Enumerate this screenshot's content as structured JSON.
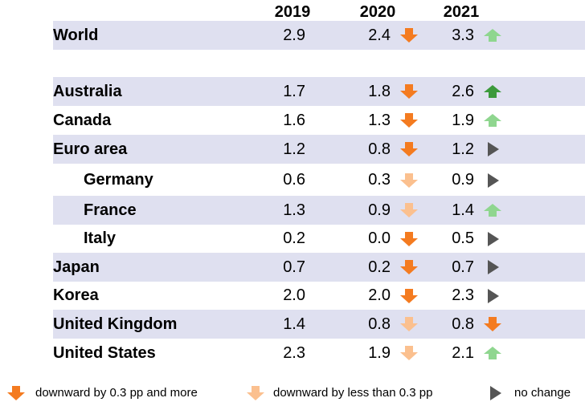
{
  "colors": {
    "row_shade": "#dfe0f0",
    "down_large": "#f47b20",
    "down_small": "#fbc08f",
    "up_large": "#3c9a3c",
    "up_small": "#8fd68f",
    "no_change": "#555555"
  },
  "chart_data": {
    "type": "table",
    "columns": [
      "2019",
      "2020",
      "2021"
    ],
    "rows": [
      {
        "label": "World",
        "indent": false,
        "values": [
          "2.9",
          "2.4",
          "3.3"
        ],
        "arrows": [
          null,
          "down-large",
          "up-small"
        ]
      },
      {
        "label": "Australia",
        "indent": false,
        "values": [
          "1.7",
          "1.8",
          "2.6"
        ],
        "arrows": [
          null,
          "down-large",
          "up-large"
        ]
      },
      {
        "label": "Canada",
        "indent": false,
        "values": [
          "1.6",
          "1.3",
          "1.9"
        ],
        "arrows": [
          null,
          "down-large",
          "up-small"
        ]
      },
      {
        "label": "Euro area",
        "indent": false,
        "values": [
          "1.2",
          "0.8",
          "1.2"
        ],
        "arrows": [
          null,
          "down-large",
          "no-change"
        ]
      },
      {
        "label": "Germany",
        "indent": true,
        "values": [
          "0.6",
          "0.3",
          "0.9"
        ],
        "arrows": [
          null,
          "down-small",
          "no-change"
        ]
      },
      {
        "label": "France",
        "indent": true,
        "values": [
          "1.3",
          "0.9",
          "1.4"
        ],
        "arrows": [
          null,
          "down-small",
          "up-small"
        ]
      },
      {
        "label": "Italy",
        "indent": true,
        "values": [
          "0.2",
          "0.0",
          "0.5"
        ],
        "arrows": [
          null,
          "down-large",
          "no-change"
        ]
      },
      {
        "label": "Japan",
        "indent": false,
        "values": [
          "0.7",
          "0.2",
          "0.7"
        ],
        "arrows": [
          null,
          "down-large",
          "no-change"
        ]
      },
      {
        "label": "Korea",
        "indent": false,
        "values": [
          "2.0",
          "2.0",
          "2.3"
        ],
        "arrows": [
          null,
          "down-large",
          "no-change"
        ]
      },
      {
        "label": "United Kingdom",
        "indent": false,
        "values": [
          "1.4",
          "0.8",
          "0.8"
        ],
        "arrows": [
          null,
          "down-small",
          "down-large"
        ]
      },
      {
        "label": "United States",
        "indent": false,
        "values": [
          "2.3",
          "1.9",
          "2.1"
        ],
        "arrows": [
          null,
          "down-small",
          "up-small"
        ]
      }
    ]
  },
  "legend": [
    {
      "icon": "down-large",
      "text": "downward by 0.3 pp and more"
    },
    {
      "icon": "down-small",
      "text": "downward by less than 0.3 pp"
    },
    {
      "icon": "no-change",
      "text": "no change"
    }
  ]
}
